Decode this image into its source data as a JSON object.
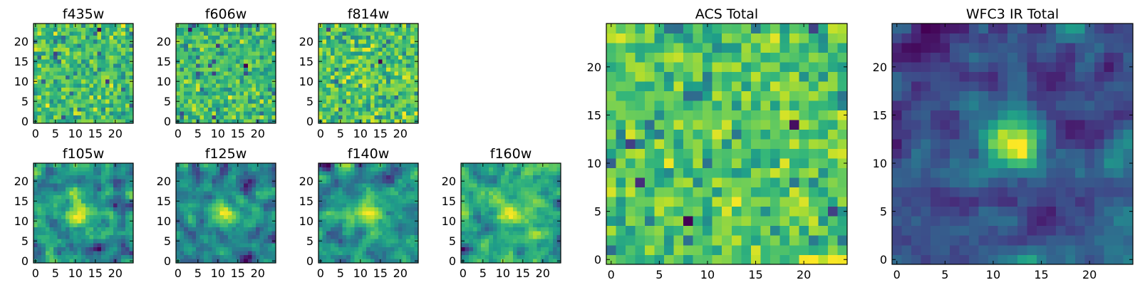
{
  "chart_data": {
    "type": "heatmap",
    "colormap": "viridis",
    "panels": [
      {
        "title": "f435w",
        "grid": 25,
        "xticks": [
          0,
          5,
          10,
          15,
          20
        ],
        "yticks": [
          0,
          5,
          10,
          15,
          20
        ],
        "pattern": "noise",
        "seed": 11
      },
      {
        "title": "f606w",
        "grid": 25,
        "xticks": [
          0,
          5,
          10,
          15,
          20
        ],
        "yticks": [
          0,
          5,
          10,
          15,
          20
        ],
        "pattern": "noise",
        "seed": 23
      },
      {
        "title": "f814w",
        "grid": 25,
        "xticks": [
          0,
          5,
          10,
          15,
          20
        ],
        "yticks": [
          0,
          5,
          10,
          15,
          20
        ],
        "pattern": "noise",
        "seed": 37
      },
      {
        "title": "f105w",
        "grid": 25,
        "xticks": [
          0,
          5,
          10,
          15,
          20
        ],
        "yticks": [
          0,
          5,
          10,
          15,
          20
        ],
        "pattern": "source",
        "seed": 41
      },
      {
        "title": "f125w",
        "grid": 25,
        "xticks": [
          0,
          5,
          10,
          15,
          20
        ],
        "yticks": [
          0,
          5,
          10,
          15,
          20
        ],
        "pattern": "source",
        "seed": 53
      },
      {
        "title": "f140w",
        "grid": 25,
        "xticks": [
          0,
          5,
          10,
          15,
          20
        ],
        "yticks": [
          0,
          5,
          10,
          15,
          20
        ],
        "pattern": "source",
        "seed": 67
      },
      {
        "title": "f160w",
        "grid": 25,
        "xticks": [
          0,
          5,
          10,
          15,
          20
        ],
        "yticks": [
          0,
          5,
          10,
          15,
          20
        ],
        "pattern": "source",
        "seed": 79
      },
      {
        "title": "ACS Total",
        "grid": 25,
        "xticks": [
          0,
          5,
          10,
          15,
          20
        ],
        "yticks": [
          0,
          5,
          10,
          15,
          20
        ],
        "pattern": "noise-bright",
        "seed": 83
      },
      {
        "title": "WFC3 IR Total",
        "grid": 25,
        "xticks": [
          0,
          5,
          10,
          15,
          20
        ],
        "yticks": [
          0,
          5,
          10,
          15,
          20
        ],
        "pattern": "source-strong",
        "seed": 97
      }
    ]
  }
}
